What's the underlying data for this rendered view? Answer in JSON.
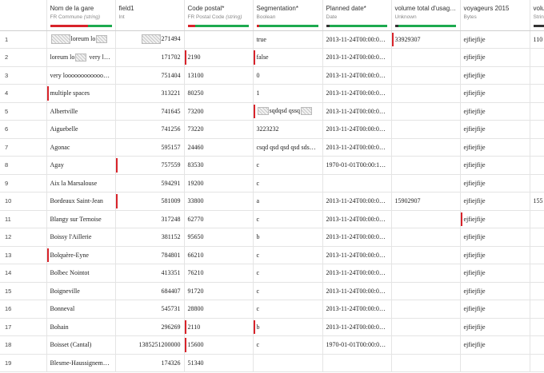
{
  "columns": [
    {
      "name": "",
      "type": "",
      "type_note": "",
      "quality": []
    },
    {
      "name": "Nom de la gare",
      "type": "FR Commune",
      "type_note": "(string)",
      "quality": [
        [
          "#d8232a",
          0.62
        ],
        [
          "#1daa4f",
          0.38
        ]
      ]
    },
    {
      "name": "field1",
      "type": "Int",
      "type_note": "",
      "quality": []
    },
    {
      "name": "Code postal*",
      "type": "FR Postal Code",
      "type_note": "(string)",
      "quality": [
        [
          "#d8232a",
          0.12
        ],
        [
          "#1daa4f",
          0.88
        ]
      ]
    },
    {
      "name": "Segmentation*",
      "type": "Boolean",
      "type_note": "",
      "quality": [
        [
          "#d8232a",
          0.05
        ],
        [
          "#1daa4f",
          0.95
        ]
      ]
    },
    {
      "name": "Planned date*",
      "type": "Date",
      "type_note": "",
      "quality": [
        [
          "#333333",
          0.06
        ],
        [
          "#1daa4f",
          0.94
        ]
      ]
    },
    {
      "name": "volume total d'usag…",
      "type": "Unknown",
      "type_note": "",
      "quality": [
        [
          "#333333",
          0.06
        ],
        [
          "#1daa4f",
          0.94
        ]
      ]
    },
    {
      "name": "voyageurs 2015",
      "type": "Bytes",
      "type_note": "",
      "quality": []
    },
    {
      "name": "volu",
      "type": "Strin",
      "type_note": "",
      "quality": [
        [
          "#333333",
          0.3
        ],
        [
          "#1daa4f",
          0.7
        ]
      ]
    }
  ],
  "rows": [
    {
      "idx": "1",
      "gare": "loreum lo",
      "gare_ph": "both",
      "field1": "271494",
      "field1_ph": true,
      "cp": "",
      "seg": "true",
      "date": "2013-11-24T00:00:0…",
      "vol": "33929307",
      "voy": "ejfiejfije",
      "last": "110"
    },
    {
      "idx": "2",
      "gare": "loreum lo",
      "gare_ph": "mid",
      "gare_tail": " very lo…",
      "field1": "171702",
      "cp": "2190",
      "seg": "false",
      "date": "2013-11-24T00:00:0…",
      "vol": "",
      "voy": "ejfiejfije",
      "last": ""
    },
    {
      "idx": "3",
      "gare": "very looooooooooooo…",
      "field1": "751404",
      "cp": "13100",
      "seg": "0",
      "date": "2013-11-24T00:00:0…",
      "vol": "",
      "voy": "ejfiejfije",
      "last": ""
    },
    {
      "idx": "4",
      "gare": "multiple spaces",
      "field1": "313221",
      "cp": "80250",
      "seg": "1",
      "date": "2013-11-24T00:00:0…",
      "vol": "",
      "voy": "ejfiejfije",
      "last": ""
    },
    {
      "idx": "5",
      "gare": "Albertville",
      "field1": "741645",
      "cp": "73200",
      "seg": "sqdqsd qssq",
      "seg_ph": true,
      "date": "2013-11-24T00:00:0…",
      "vol": "",
      "voy": "ejfiejfije",
      "last": ""
    },
    {
      "idx": "6",
      "gare": "Aiguebelle",
      "field1": "741256",
      "cp": "73220",
      "seg": "3223232",
      "date": "2013-11-24T00:00:0…",
      "vol": "",
      "voy": "ejfiejfije",
      "last": ""
    },
    {
      "idx": "7",
      "gare": "Agonac",
      "field1": "595157",
      "cp": "24460",
      "seg": "csqd qsd qsd qsd sds…",
      "date": "2013-11-24T00:00:0…",
      "vol": "",
      "voy": "ejfiejfije",
      "last": ""
    },
    {
      "idx": "8",
      "gare": "Agay",
      "field1": "757559",
      "cp": "83530",
      "seg": "c",
      "date": "1970-01-01T00:00:1…",
      "vol": "",
      "voy": "ejfiejfije",
      "last": ""
    },
    {
      "idx": "9",
      "gare": "Aix la Marsalouse",
      "field1": "594291",
      "cp": "19200",
      "seg": "c",
      "date": "",
      "vol": "",
      "voy": "ejfiejfije",
      "last": ""
    },
    {
      "idx": "10",
      "gare": "Bordeaux Saint-Jean",
      "field1": "581009",
      "cp": "33800",
      "seg": "a",
      "date": "2013-11-24T00:00:0…",
      "vol": "15902907",
      "voy": "ejfiejfije",
      "last": "155"
    },
    {
      "idx": "11",
      "gare": "Blangy sur Ternoise",
      "field1": "317248",
      "cp": "62770",
      "seg": "c",
      "date": "2013-11-24T00:00:0…",
      "vol": "",
      "voy": "ejfiejfije",
      "last": ""
    },
    {
      "idx": "12",
      "gare": "Boissy l'Aillerie",
      "field1": "381152",
      "cp": "95650",
      "seg": "b",
      "date": "2013-11-24T00:00:0…",
      "vol": "",
      "voy": "ejfiejfije",
      "last": ""
    },
    {
      "idx": "13",
      "gare": "Bolquère-Eyne",
      "field1": "784801",
      "cp": "66210",
      "seg": "c",
      "date": "2013-11-24T00:00:0…",
      "vol": "",
      "voy": "ejfiejfije",
      "last": ""
    },
    {
      "idx": "14",
      "gare": "Bolbec Nointot",
      "field1": "413351",
      "cp": "76210",
      "seg": "c",
      "date": "2013-11-24T00:00:0…",
      "vol": "",
      "voy": "ejfiejfije",
      "last": ""
    },
    {
      "idx": "15",
      "gare": "Boigneville",
      "field1": "684407",
      "cp": "91720",
      "seg": "c",
      "date": "2013-11-24T00:00:0…",
      "vol": "",
      "voy": "ejfiejfije",
      "last": ""
    },
    {
      "idx": "16",
      "gare": "Bonneval",
      "field1": "545731",
      "cp": "28800",
      "seg": "c",
      "date": "2013-11-24T00:00:0…",
      "vol": "",
      "voy": "ejfiejfije",
      "last": ""
    },
    {
      "idx": "17",
      "gare": "Bohain",
      "field1": "296269",
      "cp": "2110",
      "seg": "b",
      "date": "2013-11-24T00:00:0…",
      "vol": "",
      "voy": "ejfiejfije",
      "last": ""
    },
    {
      "idx": "18",
      "gare": "Boisset (Cantal)",
      "field1": "1385251200000",
      "cp": "15600",
      "seg": "c",
      "date": "1970-01-01T00:00:0…",
      "vol": "",
      "voy": "ejfiejfije",
      "last": ""
    },
    {
      "idx": "19",
      "gare": "Blesme-Haussignem…",
      "field1": "174326",
      "cp": "51340",
      "seg": "",
      "date": "",
      "vol": "",
      "voy": "",
      "last": ""
    }
  ],
  "invalid_cells": [
    [
      2,
      "cp"
    ],
    [
      2,
      "seg"
    ],
    [
      4,
      "gare"
    ],
    [
      5,
      "seg"
    ],
    [
      8,
      "field1"
    ],
    [
      10,
      "field1"
    ],
    [
      11,
      "voy"
    ],
    [
      13,
      "gare"
    ],
    [
      17,
      "seg"
    ],
    [
      17,
      "cp"
    ],
    [
      18,
      "cp"
    ],
    [
      1,
      "vol"
    ]
  ],
  "colors": {
    "invalid": "#d8232a",
    "valid": "#1daa4f",
    "empty": "#333333"
  }
}
